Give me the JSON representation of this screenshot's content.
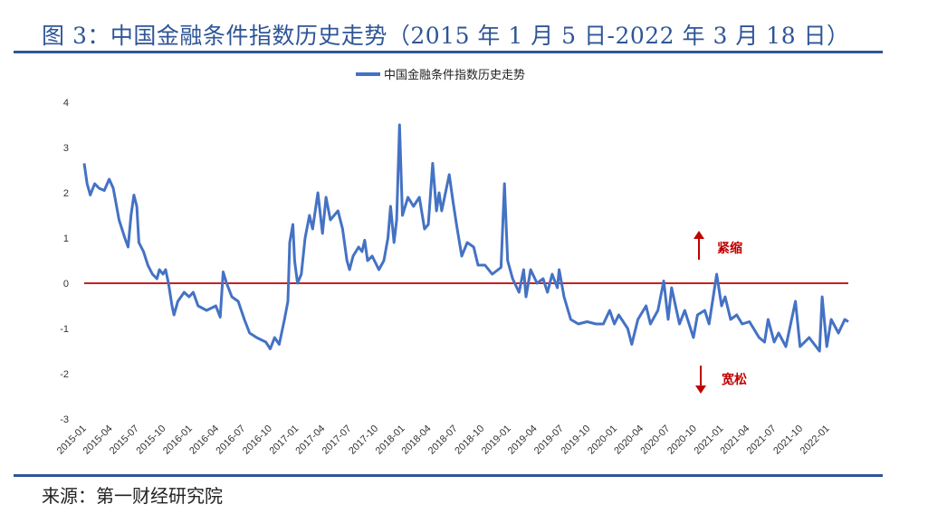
{
  "title": "图 3：中国金融条件指数历史走势（2015 年 1 月 5 日-2022 年 3 月 18 日）",
  "source": "来源：第一财经研究院",
  "colors": {
    "title": "#2f5597",
    "series": "#4472c4",
    "zero_line": "#c00000",
    "annotation": "#c00000"
  },
  "chart_data": {
    "type": "line",
    "title": "",
    "xlabel": "",
    "ylabel": "",
    "ylim": [
      -3,
      4
    ],
    "yticks": [
      4,
      3,
      2,
      1,
      0,
      -1,
      -2,
      -3
    ],
    "xlim": [
      "2015-01-05",
      "2022-03-18"
    ],
    "xticks": [
      "2015-01",
      "2015-04",
      "2015-07",
      "2015-10",
      "2016-01",
      "2016-04",
      "2016-07",
      "2016-10",
      "2017-01",
      "2017-04",
      "2017-07",
      "2017-10",
      "2018-01",
      "2018-04",
      "2018-07",
      "2018-10",
      "2019-01",
      "2019-04",
      "2019-07",
      "2019-10",
      "2020-01",
      "2020-04",
      "2020-07",
      "2020-10",
      "2021-01",
      "2021-04",
      "2021-07",
      "2021-10",
      "2022-01"
    ],
    "grid": false,
    "legend_position": "top",
    "reference_line": {
      "y": 0
    },
    "annotations": [
      {
        "text": "紧缩",
        "direction": "up"
      },
      {
        "text": "宽松",
        "direction": "down"
      }
    ],
    "series": [
      {
        "name": "中国金融条件指数历史走势",
        "x": [
          "2015-01-05",
          "2015-01-15",
          "2015-01-26",
          "2015-02-10",
          "2015-02-25",
          "2015-03-15",
          "2015-04-01",
          "2015-04-15",
          "2015-05-05",
          "2015-05-25",
          "2015-06-05",
          "2015-06-15",
          "2015-06-25",
          "2015-07-05",
          "2015-07-12",
          "2015-07-28",
          "2015-08-12",
          "2015-08-28",
          "2015-09-12",
          "2015-09-21",
          "2015-10-03",
          "2015-10-12",
          "2015-10-22",
          "2015-11-03",
          "2015-11-10",
          "2015-11-23",
          "2015-12-15",
          "2016-01-01",
          "2016-01-15",
          "2016-02-01",
          "2016-03-01",
          "2016-04-02",
          "2016-04-17",
          "2016-04-27",
          "2016-05-09",
          "2016-05-27",
          "2016-06-18",
          "2016-07-09",
          "2016-07-27",
          "2016-08-20",
          "2016-09-21",
          "2016-10-06",
          "2016-10-21",
          "2016-11-06",
          "2016-11-24",
          "2016-12-06",
          "2016-12-12",
          "2016-12-23",
          "2016-12-29",
          "2017-01-08",
          "2017-01-21",
          "2017-02-03",
          "2017-02-18",
          "2017-03-01",
          "2017-03-19",
          "2017-04-04",
          "2017-04-16",
          "2017-05-01",
          "2017-05-27",
          "2017-06-12",
          "2017-06-27",
          "2017-07-06",
          "2017-07-18",
          "2017-08-06",
          "2017-08-18",
          "2017-08-27",
          "2017-09-06",
          "2017-09-22",
          "2017-10-15",
          "2017-11-01",
          "2017-11-15",
          "2017-11-24",
          "2017-12-06",
          "2017-12-15",
          "2017-12-25",
          "2018-01-04",
          "2018-01-23",
          "2018-02-11",
          "2018-03-03",
          "2018-03-21",
          "2018-04-03",
          "2018-04-18",
          "2018-05-01",
          "2018-05-10",
          "2018-05-19",
          "2018-06-14",
          "2018-06-27",
          "2018-07-09",
          "2018-07-27",
          "2018-08-15",
          "2018-09-06",
          "2018-09-21",
          "2018-10-15",
          "2018-11-09",
          "2018-12-09",
          "2018-12-21",
          "2019-01-01",
          "2019-01-18",
          "2019-02-09",
          "2019-02-25",
          "2019-03-05",
          "2019-03-21",
          "2019-04-12",
          "2019-05-03",
          "2019-05-18",
          "2019-06-03",
          "2019-06-21",
          "2019-06-27",
          "2019-07-14",
          "2019-08-06",
          "2019-09-01",
          "2019-10-01",
          "2019-11-01",
          "2019-11-26",
          "2019-12-18",
          "2020-01-03",
          "2020-01-18",
          "2020-02-18",
          "2020-03-03",
          "2020-03-24",
          "2020-04-21",
          "2020-05-06",
          "2020-06-01",
          "2020-06-21",
          "2020-07-06",
          "2020-07-18",
          "2020-08-14",
          "2020-09-01",
          "2020-10-01",
          "2020-10-15",
          "2020-11-09",
          "2020-11-24",
          "2020-12-20",
          "2021-01-06",
          "2021-01-18",
          "2021-02-06",
          "2021-02-27",
          "2021-03-18",
          "2021-04-12",
          "2021-05-15",
          "2021-06-03",
          "2021-06-15",
          "2021-07-06",
          "2021-07-21",
          "2021-08-15",
          "2021-09-17",
          "2021-10-03",
          "2021-11-03",
          "2021-12-09",
          "2021-12-18",
          "2022-01-03",
          "2022-01-18",
          "2022-02-12",
          "2022-03-06",
          "2022-03-18"
        ],
        "values": [
          2.65,
          2.2,
          1.95,
          2.2,
          2.1,
          2.05,
          2.3,
          2.1,
          1.4,
          1.0,
          0.8,
          1.5,
          1.95,
          1.7,
          0.9,
          0.7,
          0.4,
          0.2,
          0.1,
          0.3,
          0.2,
          0.3,
          0.0,
          -0.5,
          -0.7,
          -0.4,
          -0.2,
          -0.3,
          -0.2,
          -0.5,
          -0.6,
          -0.5,
          -0.75,
          0.25,
          0.0,
          -0.3,
          -0.4,
          -0.8,
          -1.1,
          -1.2,
          -1.3,
          -1.45,
          -1.2,
          -1.35,
          -0.8,
          -0.4,
          0.9,
          1.3,
          0.5,
          0.0,
          0.2,
          1.0,
          1.5,
          1.2,
          2.0,
          1.1,
          1.9,
          1.4,
          1.6,
          1.2,
          0.5,
          0.3,
          0.6,
          0.8,
          0.7,
          0.95,
          0.5,
          0.6,
          0.3,
          0.5,
          1.0,
          1.7,
          0.9,
          1.4,
          3.5,
          1.5,
          1.9,
          1.7,
          1.9,
          1.2,
          1.3,
          2.65,
          1.6,
          2.0,
          1.6,
          2.4,
          1.8,
          1.3,
          0.6,
          0.9,
          0.8,
          0.4,
          0.4,
          0.2,
          0.35,
          2.2,
          0.5,
          0.1,
          -0.2,
          0.3,
          -0.3,
          0.3,
          0.0,
          0.1,
          -0.2,
          0.2,
          -0.1,
          0.3,
          -0.3,
          -0.8,
          -0.9,
          -0.85,
          -0.9,
          -0.9,
          -0.6,
          -0.9,
          -0.7,
          -1.0,
          -1.35,
          -0.8,
          -0.5,
          -0.9,
          -0.6,
          0.05,
          -0.8,
          -0.1,
          -0.9,
          -0.6,
          -1.2,
          -0.7,
          -0.6,
          -0.9,
          0.2,
          -0.5,
          -0.3,
          -0.8,
          -0.7,
          -0.9,
          -0.85,
          -1.2,
          -1.3,
          -0.8,
          -1.3,
          -1.1,
          -1.4,
          -0.4,
          -1.4,
          -1.2,
          -1.5,
          -0.3,
          -1.4,
          -0.8,
          -1.1,
          -0.8,
          -0.85
        ]
      }
    ]
  }
}
